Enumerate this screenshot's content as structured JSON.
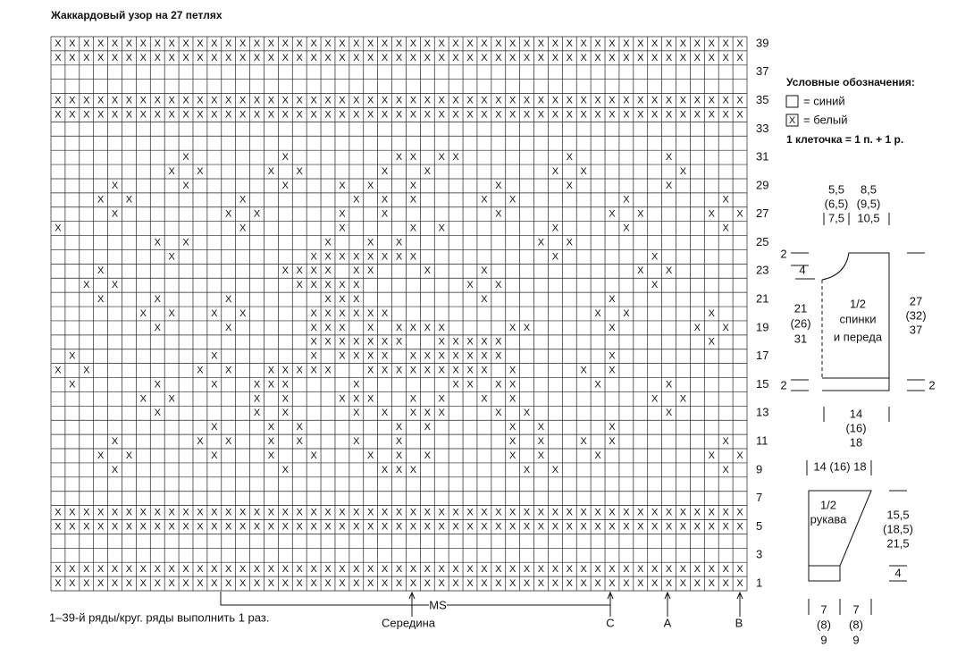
{
  "title": "Жаккардовый узор на 27 петлях",
  "grid": {
    "columns": 49,
    "rows": 39,
    "row_labels": [
      1,
      3,
      5,
      7,
      9,
      11,
      13,
      15,
      17,
      19,
      21,
      23,
      25,
      27,
      29,
      31,
      33,
      35,
      37,
      39
    ],
    "full_rows": [
      1,
      2,
      5,
      6,
      34,
      35,
      38,
      39
    ],
    "pattern": [
      {
        "row": 31,
        "x": [
          9,
          16,
          24,
          25,
          27,
          28,
          36,
          43
        ]
      },
      {
        "row": 30,
        "x": [
          8,
          10,
          15,
          17,
          23,
          26,
          35,
          37,
          44
        ]
      },
      {
        "row": 29,
        "x": [
          4,
          9,
          16,
          20,
          22,
          25,
          31,
          36,
          43
        ]
      },
      {
        "row": 28,
        "x": [
          3,
          5,
          13,
          21,
          23,
          25,
          30,
          32,
          40,
          47
        ]
      },
      {
        "row": 27,
        "x": [
          4,
          12,
          14,
          20,
          23,
          31,
          39,
          41,
          46,
          48
        ]
      },
      {
        "row": 26,
        "x": [
          0,
          13,
          20,
          25,
          27,
          35,
          40,
          47
        ]
      },
      {
        "row": 25,
        "x": [
          7,
          9,
          19,
          22,
          24,
          34,
          36
        ]
      },
      {
        "row": 24,
        "x": [
          8,
          18,
          19,
          20,
          21,
          22,
          23,
          24,
          25,
          35,
          42
        ]
      },
      {
        "row": 23,
        "x": [
          3,
          16,
          17,
          18,
          19,
          21,
          22,
          26,
          30,
          41,
          43
        ]
      },
      {
        "row": 22,
        "x": [
          2,
          4,
          17,
          18,
          19,
          20,
          21,
          29,
          31,
          42
        ]
      },
      {
        "row": 21,
        "x": [
          3,
          7,
          12,
          19,
          20,
          21,
          30,
          39
        ]
      },
      {
        "row": 20,
        "x": [
          6,
          8,
          11,
          13,
          18,
          19,
          20,
          21,
          22,
          23,
          38,
          40,
          46
        ]
      },
      {
        "row": 19,
        "x": [
          7,
          12,
          18,
          19,
          20,
          22,
          24,
          25,
          26,
          27,
          32,
          33,
          39,
          45,
          47
        ]
      },
      {
        "row": 18,
        "x": [
          18,
          19,
          20,
          21,
          22,
          23,
          24,
          27,
          28,
          29,
          30,
          31,
          46
        ]
      },
      {
        "row": 17,
        "x": [
          1,
          11,
          18,
          20,
          21,
          22,
          23,
          25,
          26,
          27,
          28,
          29,
          30,
          31,
          39
        ]
      },
      {
        "row": 16,
        "x": [
          0,
          2,
          10,
          12,
          15,
          16,
          17,
          18,
          19,
          22,
          23,
          24,
          25,
          26,
          27,
          28,
          29,
          30,
          32,
          37,
          39
        ]
      },
      {
        "row": 15,
        "x": [
          1,
          7,
          11,
          14,
          15,
          16,
          21,
          28,
          29,
          31,
          32,
          38,
          43
        ]
      },
      {
        "row": 14,
        "x": [
          6,
          8,
          14,
          16,
          20,
          21,
          22,
          25,
          27,
          30,
          32,
          42,
          44
        ]
      },
      {
        "row": 13,
        "x": [
          7,
          14,
          16,
          21,
          23,
          25,
          26,
          27,
          31,
          33,
          43
        ]
      },
      {
        "row": 12,
        "x": [
          11,
          15,
          17,
          24,
          26,
          32,
          34,
          39
        ]
      },
      {
        "row": 11,
        "x": [
          4,
          10,
          12,
          15,
          17,
          21,
          24,
          32,
          34,
          37,
          39,
          47
        ]
      },
      {
        "row": 10,
        "x": [
          3,
          5,
          11,
          15,
          18,
          22,
          24,
          26,
          32,
          34,
          38,
          46,
          48
        ]
      },
      {
        "row": 9,
        "x": [
          4,
          16,
          23,
          24,
          25,
          33,
          35,
          47
        ]
      }
    ]
  },
  "markers": {
    "ms": "MS",
    "middle": "Середина",
    "c": "C",
    "a": "A",
    "b": "B"
  },
  "note": "1–39-й ряды/круг. ряды выполнить 1 раз.",
  "legend": {
    "title": "Условные обозначения:",
    "items": [
      {
        "label": "= синий"
      },
      {
        "symbol": "X",
        "label": "= белый"
      }
    ],
    "scale": "1 клеточка = 1 п. + 1 р."
  },
  "back": {
    "neck": [
      "5,5",
      "(6,5)",
      "7,5"
    ],
    "shoulder": [
      "8,5",
      "(9,5)",
      "10,5"
    ],
    "armhole_drop": "2",
    "armhole_width": "4",
    "side": [
      "21",
      "(26)",
      "31"
    ],
    "title": [
      "1/2",
      "спинки",
      "и переда"
    ],
    "length": [
      "27",
      "(32)",
      "37"
    ],
    "rib_left": "2",
    "rib_right": "2",
    "width": [
      "14",
      "(16)",
      "18"
    ]
  },
  "sleeve": {
    "top": "14 (16) 18",
    "title": [
      "1/2",
      "рукава"
    ],
    "length": [
      "15,5",
      "(18,5)",
      "21,5"
    ],
    "cuff": "4",
    "bottom_left": [
      "7",
      "(8)",
      "9"
    ],
    "bottom_right": [
      "7",
      "(8)",
      "9"
    ]
  }
}
